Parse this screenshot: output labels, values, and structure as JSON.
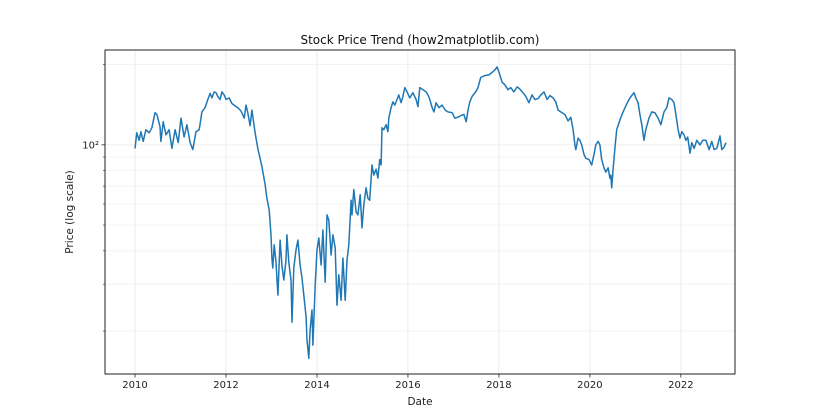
{
  "chart_data": {
    "type": "line",
    "title": "Stock Price Trend (how2matplotlib.com)",
    "xlabel": "Date",
    "ylabel": "Price (log scale)",
    "yscale": "log",
    "xlim": [
      2009.34,
      2023.19
    ],
    "ylim": [
      13.8,
      227
    ],
    "grid": true,
    "x_ticks": [
      2010,
      2012,
      2014,
      2016,
      2018,
      2020,
      2022
    ],
    "x_tick_labels": [
      "2010",
      "2012",
      "2014",
      "2016",
      "2018",
      "2020",
      "2022"
    ],
    "y_major_ticks": [
      100
    ],
    "y_major_tick_labels": [
      "10²"
    ],
    "y_minor_ticks": [
      20,
      30,
      40,
      50,
      60,
      70,
      80,
      90,
      200
    ],
    "line_color": "#1f77b4",
    "series": [
      {
        "name": "Price",
        "x": [
          2010.0,
          2010.04,
          2010.09,
          2010.13,
          2010.18,
          2010.24,
          2010.31,
          2010.37,
          2010.44,
          2010.48,
          2010.55,
          2010.57,
          2010.62,
          2010.68,
          2010.75,
          2010.81,
          2010.88,
          2010.95,
          2011.01,
          2011.08,
          2011.14,
          2011.21,
          2011.27,
          2011.34,
          2011.41,
          2011.47,
          2011.54,
          2011.6,
          2011.65,
          2011.69,
          2011.74,
          2011.78,
          2011.82,
          2011.87,
          2011.91,
          2011.96,
          2012.0,
          2012.07,
          2012.13,
          2012.2,
          2012.26,
          2012.33,
          2012.4,
          2012.44,
          2012.48,
          2012.53,
          2012.57,
          2012.64,
          2012.7,
          2012.79,
          2012.86,
          2012.9,
          2012.95,
          2012.99,
          2013.01,
          2013.03,
          2013.06,
          2013.1,
          2013.14,
          2013.19,
          2013.23,
          2013.27,
          2013.32,
          2013.34,
          2013.38,
          2013.43,
          2013.45,
          2013.49,
          2013.54,
          2013.58,
          2013.63,
          2013.67,
          2013.71,
          2013.76,
          2013.78,
          2013.82,
          2013.85,
          2013.89,
          2013.91,
          2013.96,
          2014.0,
          2014.04,
          2014.09,
          2014.13,
          2014.18,
          2014.22,
          2014.26,
          2014.31,
          2014.35,
          2014.4,
          2014.44,
          2014.48,
          2014.53,
          2014.57,
          2014.62,
          2014.66,
          2014.7,
          2014.75,
          2014.77,
          2014.81,
          2014.86,
          2014.9,
          2014.95,
          2014.99,
          2015.03,
          2015.08,
          2015.12,
          2015.16,
          2015.21,
          2015.25,
          2015.3,
          2015.34,
          2015.38,
          2015.41,
          2015.43,
          2015.47,
          2015.52,
          2015.56,
          2015.58,
          2015.63,
          2015.67,
          2015.71,
          2015.76,
          2015.8,
          2015.85,
          2015.89,
          2015.93,
          2015.98,
          2016.04,
          2016.11,
          2016.18,
          2016.22,
          2016.26,
          2016.33,
          2016.4,
          2016.44,
          2016.48,
          2016.53,
          2016.57,
          2016.62,
          2016.68,
          2016.75,
          2016.82,
          2016.88,
          2016.97,
          2017.03,
          2017.1,
          2017.17,
          2017.23,
          2017.28,
          2017.32,
          2017.36,
          2017.41,
          2017.49,
          2017.54,
          2017.6,
          2017.69,
          2017.78,
          2017.85,
          2017.91,
          2017.96,
          2018.0,
          2018.07,
          2018.13,
          2018.2,
          2018.26,
          2018.33,
          2018.4,
          2018.46,
          2018.53,
          2018.59,
          2018.66,
          2018.73,
          2018.79,
          2018.86,
          2018.92,
          2018.99,
          2019.06,
          2019.12,
          2019.19,
          2019.25,
          2019.3,
          2019.39,
          2019.45,
          2019.52,
          2019.58,
          2019.63,
          2019.67,
          2019.69,
          2019.74,
          2019.78,
          2019.82,
          2019.87,
          2019.91,
          2019.98,
          2020.04,
          2020.09,
          2020.13,
          2020.18,
          2020.22,
          2020.26,
          2020.31,
          2020.35,
          2020.4,
          2020.44,
          2020.46,
          2020.48,
          2020.51,
          2020.55,
          2020.59,
          2020.66,
          2020.73,
          2020.79,
          2020.86,
          2020.92,
          2020.97,
          2021.01,
          2021.06,
          2021.1,
          2021.14,
          2021.19,
          2021.23,
          2021.3,
          2021.36,
          2021.43,
          2021.5,
          2021.56,
          2021.63,
          2021.69,
          2021.74,
          2021.8,
          2021.85,
          2021.89,
          2021.94,
          2021.98,
          2022.02,
          2022.07,
          2022.11,
          2022.15,
          2022.2,
          2022.24,
          2022.29,
          2022.35,
          2022.42,
          2022.48,
          2022.55,
          2022.62,
          2022.68,
          2022.73,
          2022.79,
          2022.86,
          2022.9,
          2022.95,
          2022.99
        ],
        "y": [
          97,
          111,
          104,
          112,
          103,
          114,
          111,
          116,
          132,
          130,
          117,
          103,
          122,
          109,
          114,
          97,
          114,
          102,
          126,
          107,
          119,
          102,
          96,
          112,
          114,
          133,
          138,
          148,
          156,
          150,
          158,
          157,
          152,
          148,
          158,
          154,
          148,
          150,
          143,
          140,
          138,
          134,
          126,
          141,
          132,
          118,
          135,
          111,
          97,
          83,
          71,
          63,
          57,
          45.9,
          37.6,
          34.5,
          42.1,
          36.3,
          27.3,
          43.9,
          35.4,
          31.1,
          36.9,
          45.9,
          36.3,
          31.1,
          21.6,
          34.5,
          40.3,
          43.9,
          35.4,
          31.6,
          27.3,
          22.6,
          18.5,
          15.8,
          20.2,
          24.0,
          17.7,
          29.8,
          40.3,
          44.7,
          35.4,
          47.9,
          30.5,
          54.6,
          52.2,
          38.6,
          45.9,
          41.0,
          25.0,
          32.5,
          26.1,
          37.6,
          26.1,
          36.9,
          42.1,
          62,
          54.6,
          68,
          56,
          54.6,
          65,
          48.8,
          59.5,
          69,
          63,
          62,
          84,
          77,
          81,
          75,
          88,
          84,
          116,
          114,
          119,
          112,
          126,
          138,
          145,
          141,
          148,
          154,
          144,
          152,
          164,
          158,
          150,
          157,
          148,
          139,
          164,
          161,
          158,
          154,
          148,
          138,
          133,
          144,
          138,
          141,
          135,
          133,
          132,
          126,
          127,
          129,
          130,
          122,
          135,
          145,
          152,
          158,
          164,
          179,
          182,
          183,
          187,
          191,
          196,
          188,
          172,
          168,
          161,
          164,
          158,
          165,
          162,
          157,
          152,
          144,
          154,
          148,
          149,
          154,
          158,
          148,
          153,
          150,
          145,
          135,
          132,
          130,
          123,
          127,
          114,
          100,
          96,
          106,
          104,
          100,
          92,
          89,
          88,
          84,
          92,
          100,
          103,
          100,
          88,
          82,
          79,
          82,
          75,
          77,
          69,
          81,
          97,
          114,
          124,
          133,
          140,
          148,
          153,
          157,
          150,
          144,
          130,
          119,
          104,
          114,
          126,
          133,
          132,
          126,
          119,
          133,
          138,
          150,
          148,
          144,
          130,
          114,
          106,
          112,
          109,
          104,
          107,
          93,
          102,
          97,
          104,
          100,
          104,
          104,
          96,
          103,
          96,
          97,
          108,
          96,
          98,
          102
        ]
      }
    ]
  }
}
